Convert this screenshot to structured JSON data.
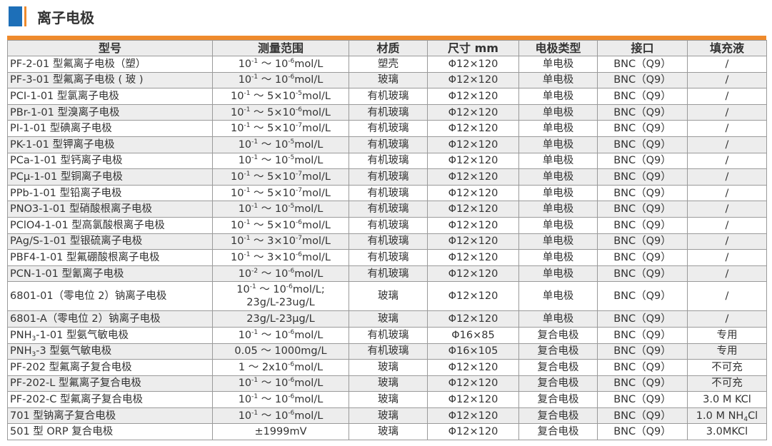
{
  "section": {
    "title": "离子电极",
    "colors": {
      "accent_blue": "#1d6fb8",
      "accent_orange": "#ef8a2c",
      "header_bg": "#ececec",
      "stripe_bg": "#ededed"
    }
  },
  "table": {
    "headers": [
      "型号",
      "测量范围",
      "材质",
      "尺寸 mm",
      "电极类型",
      "接口",
      "填充液"
    ],
    "rows": [
      [
        "PF-2-01 型氟离子电极（塑）",
        "10^{-1} ～ 10^{-6}mol/L",
        "塑壳",
        "Φ12×120",
        "单电极",
        "BNC（Q9）",
        "/"
      ],
      [
        "PF-3-01 型氟离子电极 ( 玻 )",
        "10^{-1} ～ 10^{-6}mol/L",
        "玻璃",
        "Φ12×120",
        "单电极",
        "BNC（Q9）",
        "/"
      ],
      [
        "PCI-1-01 型氯离子电极",
        "10^{-1} ～ 5×10^{-5}mol/L",
        "有机玻璃",
        "Φ12×120",
        "单电极",
        "BNC（Q9）",
        "/"
      ],
      [
        "PBr-1-01 型溴离子电极",
        "10^{-1} ～ 5×10^{-6}mol/L",
        "有机玻璃",
        "Φ12×120",
        "单电极",
        "BNC（Q9）",
        "/"
      ],
      [
        "PI-1-01 型碘离子电极",
        "10^{-1} ～ 5×10^{-7}mol/L",
        "有机玻璃",
        "Φ12×120",
        "单电极",
        "BNC（Q9）",
        "/"
      ],
      [
        "PK-1-01 型钾离子电极",
        "10^{-1} ～ 10^{-5}mol/L",
        "有机玻璃",
        "Φ12×120",
        "单电极",
        "BNC（Q9）",
        "/"
      ],
      [
        "PCa-1-01 型钙离子电极",
        "10^{-1} ～ 10^{-5}mol/L",
        "有机玻璃",
        "Φ12×120",
        "单电极",
        "BNC（Q9）",
        "/"
      ],
      [
        "PCμ-1-01 型铜离子电极",
        "10^{-1} ～ 5×10^{-7}mol/L",
        "有机玻璃",
        "Φ12×120",
        "单电极",
        "BNC（Q9）",
        "/"
      ],
      [
        "PPb-1-01 型铅离子电极",
        "10^{-1} ～ 5×10^{-7}mol/L",
        "有机玻璃",
        "Φ12×120",
        "单电极",
        "BNC（Q9）",
        "/"
      ],
      [
        "PNO3-1-01 型硝酸根离子电极",
        "10^{-1} ～ 10^{-5}mol/L",
        "有机玻璃",
        "Φ12×120",
        "单电极",
        "BNC（Q9）",
        "/"
      ],
      [
        "PClO4-1-01 型高氯酸根离子电极",
        "10^{-1} ～ 5×10^{-6}mol/L",
        "有机玻璃",
        "Φ12×120",
        "单电极",
        "BNC（Q9）",
        "/"
      ],
      [
        "PAg/S-1-01 型银硫离子电极",
        "10^{-1} ～ 3×10^{-7}mol/L",
        "有机玻璃",
        "Φ12×120",
        "单电极",
        "BNC（Q9）",
        "/"
      ],
      [
        "PBF4-1-01 型氟硼酸根离子电极",
        "10^{-1} ～ 3×10^{-6}mol/L",
        "有机玻璃",
        "Φ12×120",
        "单电极",
        "BNC（Q9）",
        "/"
      ],
      [
        "PCN-1-01 型氰离子电极",
        "10^{-2} ～ 10^{-6}mol/L",
        "有机玻璃",
        "Φ12×120",
        "单电极",
        "BNC（Q9）",
        "/"
      ],
      [
        "6801-01（零电位 2）钠离子电极",
        "10^{-1} ～ 10^{-6}mol/L;\n23g/L-23ug/L",
        "玻璃",
        "Φ12×120",
        "单电极",
        "BNC（Q9）",
        "/"
      ],
      [
        "6801-A（零电位 2）钠离子电极",
        "23g/L-23μg/L",
        "玻璃",
        "Φ12×120",
        "单电极",
        "BNC（Q9）",
        "/"
      ],
      [
        "PNH_{3}-1-01 型氨气敏电极",
        "10^{-1} ～ 10^{-6}mol/L",
        "有机玻璃",
        "Φ16×85",
        "复合电极",
        "BNC（Q9）",
        "专用"
      ],
      [
        "PNH_{3}-3 型氨气敏电极",
        "0.05 ～ 1000mg/L",
        "有机玻璃",
        "Φ16×105",
        "复合电极",
        "BNC（Q9）",
        "专用"
      ],
      [
        "PF-202 型氟离子复合电极",
        "1 ～ 2x10^{-6}mol/L",
        "玻璃",
        "Φ12×120",
        "复合电极",
        "BNC（Q9）",
        "不可充"
      ],
      [
        "PF-202-L 型氟离子复合电极",
        "10^{-1} ～ 10^{-6}mol/L",
        "玻璃",
        "Φ12×120",
        "复合电极",
        "BNC（Q9）",
        "不可充"
      ],
      [
        "PF-202-C 型氟离子复合电极",
        "10^{-1} ～ 10^{-6}mol/L",
        "玻璃",
        "Φ12×120",
        "复合电极",
        "BNC（Q9）",
        "3.0  M KCl"
      ],
      [
        "701 型钠离子复合电极",
        "10^{-1} ～ 10^{-6}mol/L",
        "玻璃",
        "Φ12×120",
        "复合电极",
        "BNC（Q9）",
        "1.0 M NH_{4}Cl"
      ],
      [
        "501 型 ORP 复合电极",
        "±1999mV",
        "玻璃",
        "Φ12×120",
        "复合电极",
        "BNC（Q9）",
        "3.0MKCl"
      ]
    ]
  }
}
